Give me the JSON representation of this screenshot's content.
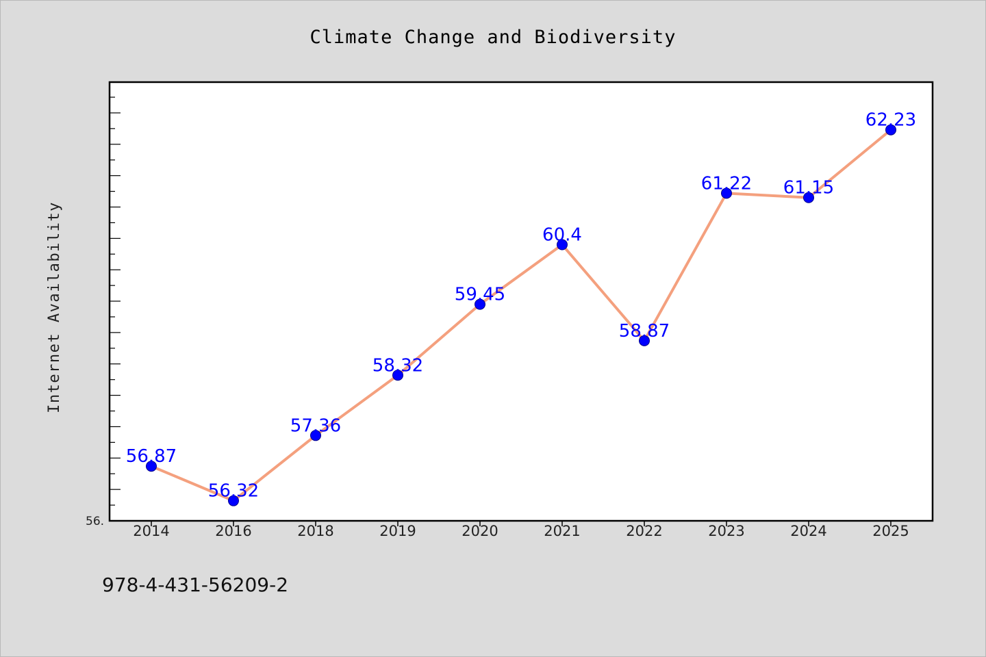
{
  "colors": {
    "background": "#dcdcdc",
    "plot_background": "#ffffff",
    "line": "#f4a07e",
    "marker": "#0000ff",
    "label": "#0000ff",
    "frame": "#000000"
  },
  "footer": {
    "isbn": "978-4-431-56209-2"
  },
  "chart_data": {
    "type": "line",
    "title": "Climate Change and Biodiversity",
    "xlabel": "",
    "ylabel": "Internet Availability",
    "categories": [
      "2014",
      "2016",
      "2018",
      "2019",
      "2020",
      "2021",
      "2022",
      "2023",
      "2024",
      "2025"
    ],
    "series": [
      {
        "values": [
          56.87,
          56.32,
          57.36,
          58.32,
          59.45,
          60.4,
          58.87,
          61.22,
          61.15,
          62.23
        ]
      }
    ],
    "data_labels": [
      "56.87",
      "56.32",
      "57.36",
      "58.32",
      "59.45",
      "60.4",
      "58.87",
      "61.22",
      "61.15",
      "62.23"
    ],
    "ylim": [
      56.0,
      63.0
    ],
    "y_tick_label": "56.",
    "grid": false,
    "legend": "none"
  }
}
